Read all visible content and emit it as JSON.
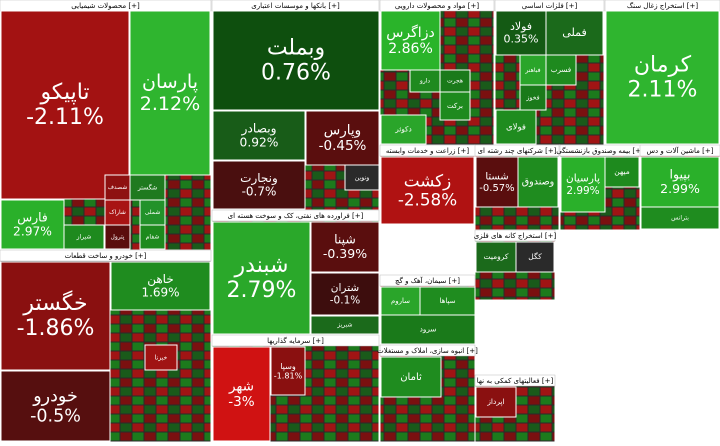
{
  "sectors": [
    {
      "title": "محصولات شیمیایی [+]",
      "cells": [
        {
          "name": "تاپیکو",
          "change": "-2.11%",
          "color": "#a31212"
        },
        {
          "name": "پارسان",
          "change": "2.12%",
          "color": "#2fb52f"
        },
        {
          "name": "فارس",
          "change": "2.97%",
          "color": "#2ab02a"
        },
        {
          "name": "شگستر",
          "color": "#1f7a1f"
        },
        {
          "name": "شصدف",
          "color": "#8e1111"
        },
        {
          "name": "شاراک",
          "color": "#a81414"
        },
        {
          "name": "پترول",
          "color": "#5a0d0d"
        },
        {
          "name": "شملی",
          "color": "#22922a"
        },
        {
          "name": "شفام",
          "color": "#1d8a1d"
        },
        {
          "name": "شیراز",
          "color": "#1e8a1e"
        }
      ]
    },
    {
      "title": "خودرو و ساخت قطعات [+]",
      "cells": [
        {
          "name": "خگستر",
          "change": "-1.86%",
          "color": "#8a1010"
        },
        {
          "name": "خودرو",
          "change": "-0.5%",
          "color": "#560f0f"
        },
        {
          "name": "خاهن",
          "change": "1.69%",
          "color": "#1f8c1f"
        },
        {
          "name": "خبرنا",
          "color": "#a01313"
        }
      ]
    },
    {
      "title": "بانکها و موسسات اعتباری [+]",
      "cells": [
        {
          "name": "وبملت",
          "change": "0.76%",
          "color": "#0e4f0e"
        },
        {
          "name": "وبصادر",
          "change": "0.92%",
          "color": "#185c18"
        },
        {
          "name": "ونجارت",
          "change": "-0.7%",
          "color": "#4a0f0f"
        },
        {
          "name": "وپارس",
          "change": "-0.45%",
          "color": "#5a0e0e"
        },
        {
          "name": "ونوین",
          "color": "#2a2a2a"
        }
      ]
    },
    {
      "title": "فراورده های نفتی، کک و سوخت هسته ای [+]",
      "cells": [
        {
          "name": "شبندر",
          "change": "2.79%",
          "color": "#2aa82a"
        },
        {
          "name": "شپنا",
          "change": "-0.39%",
          "color": "#5a0e0e"
        },
        {
          "name": "شتران",
          "change": "-0.1%",
          "color": "#3d0d0d"
        },
        {
          "name": "شبریز",
          "color": "#1b6a1b"
        }
      ]
    },
    {
      "title": "سرمایه گذاریها [+]",
      "cells": [
        {
          "name": "شهر",
          "change": "-3%",
          "color": "#d01212"
        },
        {
          "name": "وسپا",
          "change": "-1.81%",
          "color": "#8a1010"
        }
      ]
    },
    {
      "title": "مواد و محصولات دارویی [+]",
      "cells": [
        {
          "name": "دزاگرس",
          "change": "2.86%",
          "color": "#2ab42a"
        },
        {
          "name": "دارو",
          "color": "#1f8a1f"
        },
        {
          "name": "هجرت",
          "color": "#1a7a1a"
        },
        {
          "name": "برکت",
          "color": "#1e8a1e"
        },
        {
          "name": "دکوثر",
          "color": "#2aa52a"
        }
      ]
    },
    {
      "title": "زراعت و خدمات وابسته [+]",
      "cells": [
        {
          "name": "زکشت",
          "change": "-2.58%",
          "color": "#b01212"
        }
      ]
    },
    {
      "title": "فلزات اساسی [+]",
      "cells": [
        {
          "name": "فولاد",
          "change": "0.35%",
          "color": "#145a14"
        },
        {
          "name": "فملی",
          "color": "#1b6a1b"
        },
        {
          "name": "فسرب",
          "color": "#1e8a1e"
        },
        {
          "name": "فباهنر",
          "color": "#2aa52a"
        },
        {
          "name": "فخوز",
          "color": "#1a7a1a"
        },
        {
          "name": "فولای",
          "color": "#1f8c1f"
        }
      ]
    },
    {
      "title": "استخراج زغال سنگ [+]",
      "cells": [
        {
          "name": "کرمان",
          "change": "2.11%",
          "color": "#2fb52f"
        }
      ]
    },
    {
      "title": "شرکتهای چند رشته ای [+]",
      "cells": [
        {
          "name": "شستا",
          "change": "-0.57%",
          "color": "#5a0e0e"
        },
        {
          "name": "وصندوق",
          "color": "#1f8c1f"
        }
      ]
    },
    {
      "title": "بیمه وصندوق بازنشستگی [+]",
      "cells": [
        {
          "name": "پارسیان",
          "change": "2.99%",
          "color": "#2ab02a"
        },
        {
          "name": "میهن",
          "color": "#1e8a1e"
        }
      ]
    },
    {
      "title": "ماشین آلات و دس [+]",
      "cells": [
        {
          "name": "بپیوا",
          "change": "2.99%",
          "color": "#2ab02a"
        },
        {
          "name": "بترانس",
          "color": "#1f8c1f"
        }
      ]
    },
    {
      "title": "استخراج کانه های فلزی [+]",
      "cells": [
        {
          "name": "کروميت",
          "color": "#1b6a1b"
        },
        {
          "name": "کگل",
          "color": "#2a2a2a"
        }
      ]
    },
    {
      "title": "سیمان، آهک و گچ [+]",
      "cells": [
        {
          "name": "سپاها",
          "color": "#1f8c1f"
        },
        {
          "name": "ساروم",
          "color": "#2aa52a"
        },
        {
          "name": "سرود",
          "color": "#1a7a1a"
        }
      ]
    },
    {
      "title": "انبوه سازی، املاک و مستغلات [+]",
      "cells": [
        {
          "name": "ثامان",
          "color": "#1f8c1f"
        }
      ]
    },
    {
      "title": "فعالیتهای کمکی به نها [+]",
      "cells": [
        {
          "name": "اپرداز",
          "color": "#8a1010"
        }
      ]
    }
  ]
}
